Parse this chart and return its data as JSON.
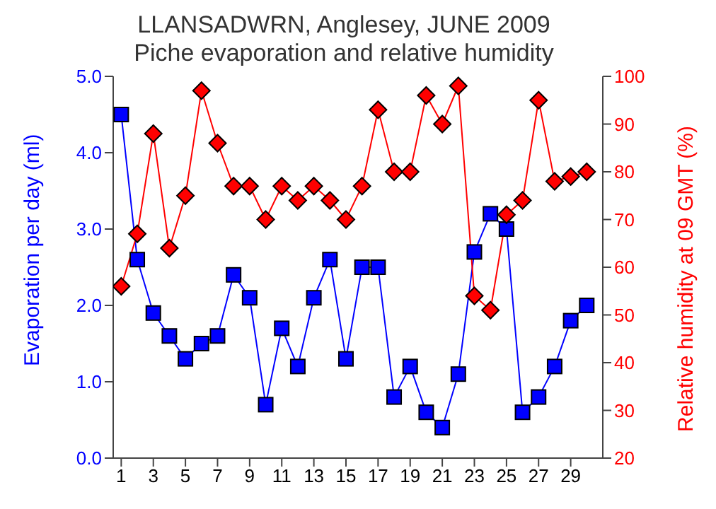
{
  "chart_data": {
    "type": "line",
    "title": "LLANSADWRN, Anglesey, JUNE 2009",
    "subtitle": "Piche evaporation and relative humidity",
    "ylabel": "Evaporation per day (ml)",
    "y2label": "Relative humidity at 09 GMT (%)",
    "x": [
      1,
      2,
      3,
      4,
      5,
      6,
      7,
      8,
      9,
      10,
      11,
      12,
      13,
      14,
      15,
      16,
      17,
      18,
      19,
      20,
      21,
      22,
      23,
      24,
      25,
      26,
      27,
      28,
      29,
      30
    ],
    "xlim": [
      0.5,
      31
    ],
    "xticks": [
      1,
      3,
      5,
      7,
      9,
      11,
      13,
      15,
      17,
      19,
      21,
      23,
      25,
      27,
      29
    ],
    "ylim": [
      0,
      5
    ],
    "yticks": [
      {
        "value": 0,
        "label": "0.0"
      },
      {
        "value": 1,
        "label": "1.0"
      },
      {
        "value": 2,
        "label": "2.0"
      },
      {
        "value": 3,
        "label": "3.0"
      },
      {
        "value": 4,
        "label": "4.0"
      },
      {
        "value": 5,
        "label": "5.0"
      }
    ],
    "y2lim": [
      20,
      100
    ],
    "y2ticks": [
      20,
      30,
      40,
      50,
      60,
      70,
      80,
      90,
      100
    ],
    "series": [
      {
        "color": "#0000ff",
        "marker": "square",
        "values": [
          4.5,
          2.6,
          1.9,
          1.6,
          1.3,
          1.5,
          1.6,
          2.4,
          2.1,
          0.7,
          1.7,
          1.2,
          2.1,
          2.6,
          1.3,
          2.5,
          2.5,
          0.8,
          1.2,
          0.6,
          0.4,
          1.1,
          2.7,
          3.2,
          3.0,
          0.6,
          0.8,
          1.2,
          1.8,
          2.0
        ]
      },
      {
        "color": "#ff0000",
        "marker": "diamond",
        "axis": "y2",
        "values": [
          56,
          67,
          88,
          64,
          75,
          97,
          86,
          77,
          77,
          70,
          77,
          74,
          77,
          74,
          70,
          77,
          93,
          80,
          80,
          96,
          90,
          98,
          54,
          51,
          71,
          74,
          95,
          78,
          79,
          80
        ]
      }
    ]
  }
}
